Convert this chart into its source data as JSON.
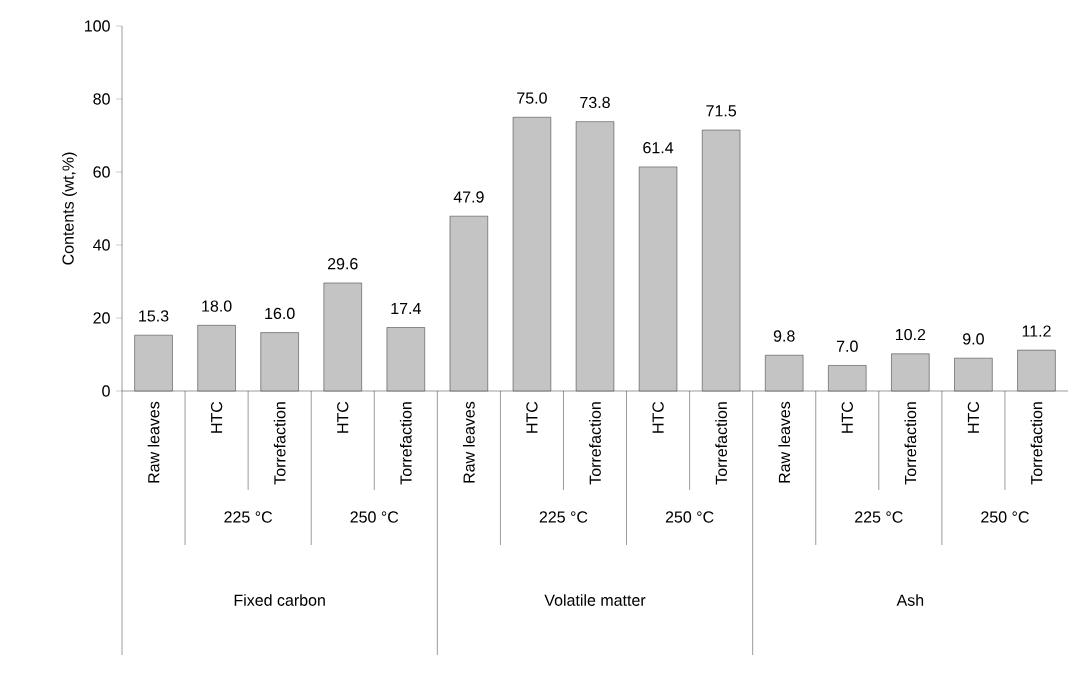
{
  "chart_data": {
    "type": "bar",
    "ylabel": "Contents (wt,%)",
    "categories": [
      "Raw leaves",
      "HTC",
      "Torrefaction",
      "HTC",
      "Torrefaction",
      "Raw leaves",
      "HTC",
      "Torrefaction",
      "HTC",
      "Torrefaction",
      "Raw leaves",
      "HTC",
      "Torrefaction",
      "HTC",
      "Torrefaction"
    ],
    "values": [
      15.3,
      18.0,
      16.0,
      29.6,
      17.4,
      47.9,
      75.0,
      73.8,
      61.4,
      71.5,
      9.8,
      7.0,
      10.2,
      9.0,
      11.2
    ],
    "value_labels": [
      "15.3",
      "18.0",
      "16.0",
      "29.6",
      "17.4",
      "47.9",
      "75.0",
      "73.8",
      "61.4",
      "71.5",
      "9.8",
      "7.0",
      "10.2",
      "9.0",
      "11.2"
    ],
    "color": "#c4c4c4",
    "ylim": [
      0,
      100
    ],
    "yticks": [
      0,
      20,
      40,
      60,
      80,
      100
    ],
    "annotations": [
      "225 °C",
      "250 °C",
      "225 °C",
      "250 °C",
      "225 °C",
      "250 °C",
      "Fixed carbon",
      "Volatile matter",
      "Ash"
    ]
  }
}
